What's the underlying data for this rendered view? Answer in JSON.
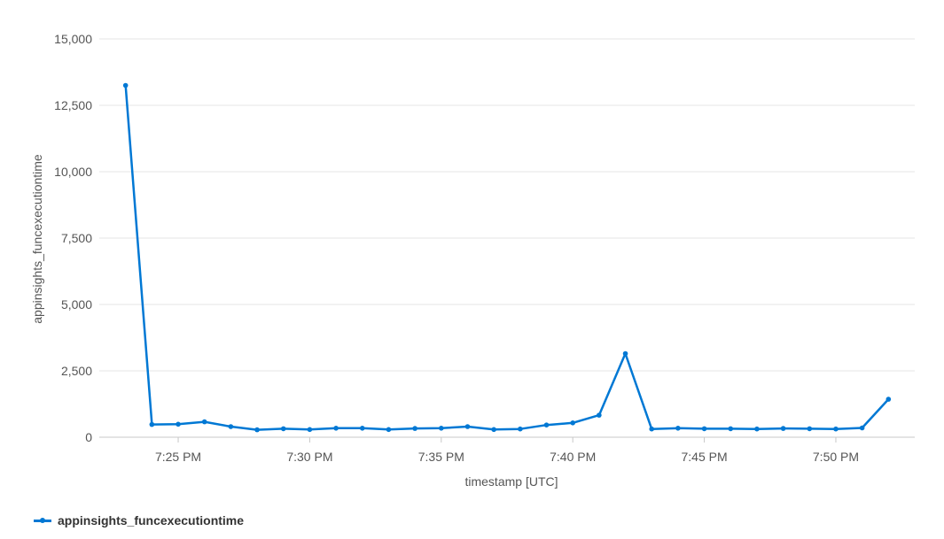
{
  "chart_data": {
    "type": "line",
    "xlabel": "timestamp [UTC]",
    "ylabel": "appinsights_funcexecutiontime",
    "ylim": [
      0,
      15000
    ],
    "yticks": [
      0,
      2500,
      5000,
      7500,
      10000,
      12500,
      15000
    ],
    "ytick_labels": [
      "0",
      "2,500",
      "5,000",
      "7,500",
      "10,000",
      "12,500",
      "15,000"
    ],
    "xlim": [
      "7:22 PM",
      "7:53 PM"
    ],
    "xticks": [
      "7:25 PM",
      "7:30 PM",
      "7:35 PM",
      "7:40 PM",
      "7:45 PM",
      "7:50 PM"
    ],
    "grid": true,
    "legend_position": "bottom-left",
    "x": [
      "7:23 PM",
      "7:24 PM",
      "7:25 PM",
      "7:26 PM",
      "7:27 PM",
      "7:28 PM",
      "7:29 PM",
      "7:30 PM",
      "7:31 PM",
      "7:32 PM",
      "7:33 PM",
      "7:34 PM",
      "7:35 PM",
      "7:36 PM",
      "7:37 PM",
      "7:38 PM",
      "7:39 PM",
      "7:40 PM",
      "7:41 PM",
      "7:42 PM",
      "7:43 PM",
      "7:44 PM",
      "7:45 PM",
      "7:46 PM",
      "7:47 PM",
      "7:48 PM",
      "7:49 PM",
      "7:50 PM",
      "7:51 PM",
      "7:52 PM"
    ],
    "series": [
      {
        "name": "appinsights_funcexecutiontime",
        "color": "#0078d4",
        "values": [
          13250,
          480,
          490,
          580,
          400,
          280,
          320,
          290,
          340,
          340,
          290,
          330,
          340,
          400,
          290,
          310,
          460,
          540,
          830,
          3150,
          310,
          340,
          320,
          320,
          310,
          330,
          320,
          310,
          350,
          1430
        ]
      }
    ]
  }
}
